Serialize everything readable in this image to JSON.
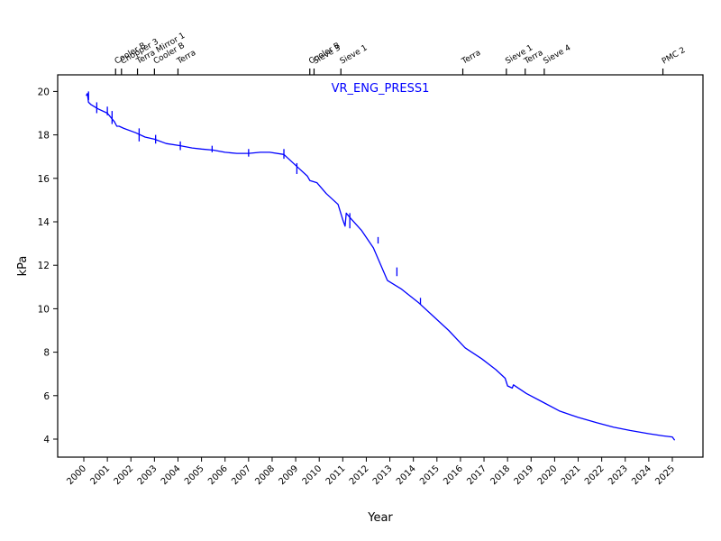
{
  "chart_data": {
    "type": "line",
    "title": "VR_ENG_PRESS1",
    "xlabel": "Year",
    "ylabel": "kPa",
    "xlim": [
      1999.0,
      2026.5
    ],
    "ylim": [
      3.2,
      20.7
    ],
    "grid": false,
    "line_color": "#0000ff",
    "x_ticks": [
      2000,
      2001,
      2002,
      2003,
      2004,
      2005,
      2006,
      2007,
      2008,
      2009,
      2010,
      2011,
      2012,
      2013,
      2014,
      2015,
      2016,
      2017,
      2018,
      2019,
      2020,
      2021,
      2022,
      2023,
      2024,
      2025
    ],
    "y_ticks": [
      4,
      6,
      8,
      10,
      12,
      14,
      16,
      18,
      20
    ],
    "series": [
      {
        "name": "VR_ENG_PRESS1",
        "x": [
          2000.1,
          2000.15,
          2000.2,
          2000.3,
          2000.6,
          2001.0,
          2001.3,
          2001.4,
          2001.5,
          2001.7,
          2002.2,
          2002.6,
          2003.0,
          2003.5,
          2004.1,
          2004.6,
          2005.0,
          2005.5,
          2006.0,
          2006.5,
          2007.0,
          2007.5,
          2007.9,
          2008.5,
          2009.1,
          2009.5,
          2009.6,
          2009.9,
          2010.3,
          2010.8,
          2011.0,
          2011.1,
          2011.15,
          2011.3,
          2011.8,
          2012.3,
          2012.9,
          2013.5,
          2014.2,
          2014.8,
          2015.5,
          2016.2,
          2016.9,
          2017.5,
          2017.9,
          2018.0,
          2018.2,
          2018.25,
          2018.8,
          2019.5,
          2020.2,
          2021.0,
          2021.8,
          2022.5,
          2023.2,
          2024.0,
          2024.6,
          2025.0,
          2025.1
        ],
        "y": [
          19.8,
          19.9,
          19.5,
          19.4,
          19.2,
          19.0,
          18.6,
          18.4,
          18.4,
          18.3,
          18.1,
          17.9,
          17.8,
          17.6,
          17.5,
          17.4,
          17.35,
          17.3,
          17.2,
          17.15,
          17.15,
          17.2,
          17.2,
          17.1,
          16.5,
          16.1,
          15.9,
          15.8,
          15.3,
          14.8,
          14.1,
          13.8,
          14.4,
          14.2,
          13.6,
          12.8,
          11.3,
          10.9,
          10.3,
          9.7,
          9.0,
          8.2,
          7.7,
          7.2,
          6.8,
          6.45,
          6.35,
          6.5,
          6.1,
          5.7,
          5.3,
          5.0,
          4.75,
          4.55,
          4.4,
          4.25,
          4.15,
          4.1,
          3.95
        ]
      }
    ],
    "spikes": [
      {
        "x": 2000.2,
        "y_low": 19.6,
        "y_high": 20.0
      },
      {
        "x": 2000.55,
        "y_low": 19.0,
        "y_high": 19.5
      },
      {
        "x": 2001.0,
        "y_low": 18.9,
        "y_high": 19.3
      },
      {
        "x": 2001.2,
        "y_low": 18.5,
        "y_high": 19.1
      },
      {
        "x": 2002.35,
        "y_low": 17.7,
        "y_high": 18.3
      },
      {
        "x": 2003.05,
        "y_low": 17.6,
        "y_high": 18.0
      },
      {
        "x": 2004.1,
        "y_low": 17.3,
        "y_high": 17.7
      },
      {
        "x": 2005.45,
        "y_low": 17.2,
        "y_high": 17.5
      },
      {
        "x": 2007.0,
        "y_low": 17.0,
        "y_high": 17.35
      },
      {
        "x": 2008.5,
        "y_low": 16.9,
        "y_high": 17.35
      },
      {
        "x": 2009.05,
        "y_low": 16.2,
        "y_high": 16.7
      },
      {
        "x": 2011.3,
        "y_low": 13.7,
        "y_high": 14.4
      },
      {
        "x": 2012.5,
        "y_low": 13.0,
        "y_high": 13.3
      },
      {
        "x": 2013.3,
        "y_low": 11.5,
        "y_high": 11.9
      },
      {
        "x": 2014.3,
        "y_low": 10.2,
        "y_high": 10.5
      }
    ],
    "events": [
      {
        "x": 2001.35,
        "label": "Cooler B"
      },
      {
        "x": 2001.6,
        "label": "Chopper 3"
      },
      {
        "x": 2002.28,
        "label": "Terra Mirror 1"
      },
      {
        "x": 2003.0,
        "label": "Cooler B"
      },
      {
        "x": 2004.0,
        "label": "Terra"
      },
      {
        "x": 2009.6,
        "label": "Cooler B"
      },
      {
        "x": 2009.78,
        "label": "Sieve 3"
      },
      {
        "x": 2010.92,
        "label": "Sieve 1"
      },
      {
        "x": 2016.1,
        "label": "Terra"
      },
      {
        "x": 2017.95,
        "label": "Sieve 1"
      },
      {
        "x": 2018.75,
        "label": "Terra"
      },
      {
        "x": 2019.56,
        "label": "Sieve 4"
      },
      {
        "x": 2024.6,
        "label": "PMC 2"
      }
    ]
  }
}
